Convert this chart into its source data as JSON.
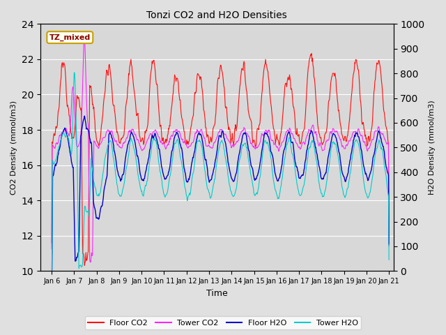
{
  "title": "Tonzi CO2 and H2O Densities",
  "xlabel": "Time",
  "ylabel_left": "CO2 Density (mmol/m3)",
  "ylabel_right": "H2O Density (mmol/m3)",
  "xlim_days": [
    5.5,
    21.2
  ],
  "ylim_left": [
    10,
    24
  ],
  "ylim_right": [
    0,
    1000
  ],
  "yticks_left": [
    10,
    12,
    14,
    16,
    18,
    20,
    22,
    24
  ],
  "yticks_right": [
    0,
    100,
    200,
    300,
    400,
    500,
    600,
    700,
    800,
    900,
    1000
  ],
  "bg_color": "#e0e0e0",
  "plot_bg": "#d8d8d8",
  "annotation_text": "TZ_mixed",
  "annotation_color": "#8b0000",
  "annotation_bg": "#fffff0",
  "annotation_border": "#c8a000",
  "floor_co2_color": "#ff1010",
  "tower_co2_color": "#ff22ff",
  "floor_h2o_color": "#0000cc",
  "tower_h2o_color": "#00cccc",
  "legend_labels": [
    "Floor CO2",
    "Tower CO2",
    "Floor H2O",
    "Tower H2O"
  ],
  "xtick_labels": [
    "Jan 6",
    "Jan 7",
    "Jan 8",
    "Jan 9",
    "Jan 10",
    "Jan 11",
    "Jan 12",
    "Jan 13",
    "Jan 14",
    "Jan 15",
    "Jan 16",
    "Jan 17",
    "Jan 18",
    "Jan 19",
    "Jan 20",
    "Jan 21"
  ],
  "xtick_positions": [
    6,
    7,
    8,
    9,
    10,
    11,
    12,
    13,
    14,
    15,
    16,
    17,
    18,
    19,
    20,
    21
  ],
  "h2o_co2_ratio": 33.33
}
